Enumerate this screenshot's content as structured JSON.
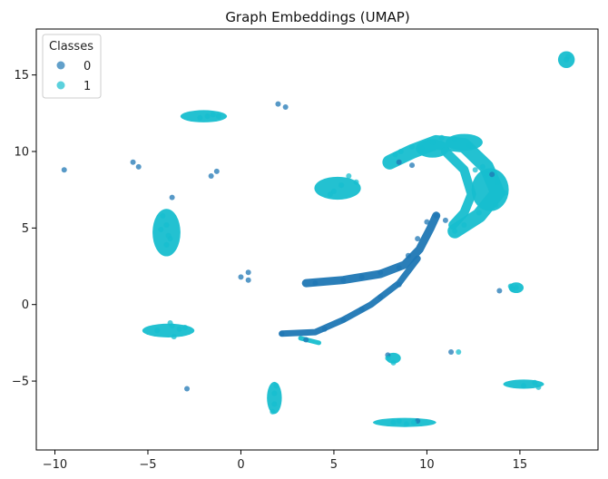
{
  "chart_data": {
    "type": "scatter",
    "title": "Graph Embeddings (UMAP)",
    "xlabel": "",
    "ylabel": "",
    "xlim": [
      -11,
      19.2
    ],
    "ylim": [
      -9.5,
      18
    ],
    "xticks": [
      -10,
      -5,
      0,
      5,
      10,
      15
    ],
    "yticks": [
      -5,
      0,
      5,
      10,
      15
    ],
    "x_tick_labels": [
      "−10",
      "−5",
      "0",
      "5",
      "10",
      "15"
    ],
    "y_tick_labels": [
      "−5",
      "0",
      "5",
      "10",
      "15"
    ],
    "grid": false,
    "legend": {
      "title": "Classes",
      "position": "top-left",
      "entries": [
        "0",
        "1"
      ]
    },
    "colors": {
      "0": "#1f77b4",
      "1": "#17becf"
    },
    "series": [
      {
        "name": "0",
        "color": "#1f77b4",
        "x": [
          -9.5,
          -5.8,
          -5.5,
          -1.6,
          -1.3,
          -3.7,
          0.0,
          0.4,
          0.4,
          2.0,
          2.4,
          -2.9,
          4.0,
          5.5,
          6.5,
          7.5,
          8.5,
          9.0,
          9.5,
          10.0,
          10.5,
          11.0,
          3.5,
          4.5,
          5.5,
          6.5,
          7.5,
          8.5,
          2.2,
          13.9,
          11.3,
          7.9,
          8.5,
          9.2,
          9.5,
          13.5
        ],
        "y": [
          8.8,
          9.3,
          9.0,
          8.4,
          8.7,
          7.0,
          1.8,
          1.6,
          2.1,
          13.1,
          12.9,
          -5.5,
          1.4,
          1.6,
          1.8,
          2.1,
          2.4,
          3.2,
          4.3,
          5.4,
          5.8,
          5.5,
          -2.3,
          -1.6,
          -1.0,
          -0.3,
          0.5,
          1.3,
          -1.9,
          0.9,
          -3.1,
          -3.3,
          9.3,
          9.1,
          -7.6,
          8.5
        ]
      },
      {
        "name": "1",
        "color": "#17becf",
        "x": [
          -4.2,
          -3.9,
          -4.0,
          -3.8,
          -4.3,
          -4.0,
          -3.7,
          -3.3,
          -4.5,
          -3.6,
          -1.8,
          -1.5,
          -2.2,
          -1.2,
          1.8,
          1.8,
          1.7,
          1.9,
          5.0,
          5.4,
          6.2,
          4.8,
          5.8,
          8.3,
          8.6,
          9.2,
          9.7,
          10.3,
          10.8,
          11.5,
          12.3,
          13.0,
          13.8,
          14.2,
          13.7,
          12.8,
          12.0,
          11.5,
          12.6,
          13.2,
          14.5,
          14.6,
          15.2,
          15.8,
          16.0,
          17.5,
          17.6,
          8.2,
          8.5,
          8.9,
          9.3,
          7.9,
          8.2,
          11.7,
          14.8,
          -3.0,
          -3.8
        ],
        "y": [
          5.8,
          4.5,
          3.9,
          4.3,
          4.9,
          5.2,
          -1.4,
          -1.6,
          -1.7,
          -2.1,
          12.3,
          12.4,
          12.2,
          12.3,
          -5.8,
          -6.5,
          -7.0,
          -5.3,
          7.4,
          7.8,
          8.0,
          7.2,
          8.4,
          9.8,
          10.0,
          10.3,
          10.2,
          10.6,
          10.9,
          10.8,
          10.4,
          9.0,
          8.0,
          7.3,
          6.5,
          6.0,
          5.2,
          4.8,
          8.8,
          8.5,
          1.2,
          1.0,
          -5.3,
          -5.1,
          -5.4,
          16.0,
          16.2,
          -7.7,
          -7.6,
          -7.8,
          -7.7,
          -3.5,
          -3.8,
          -3.1,
          1.1,
          -1.5,
          -1.2
        ]
      }
    ]
  }
}
